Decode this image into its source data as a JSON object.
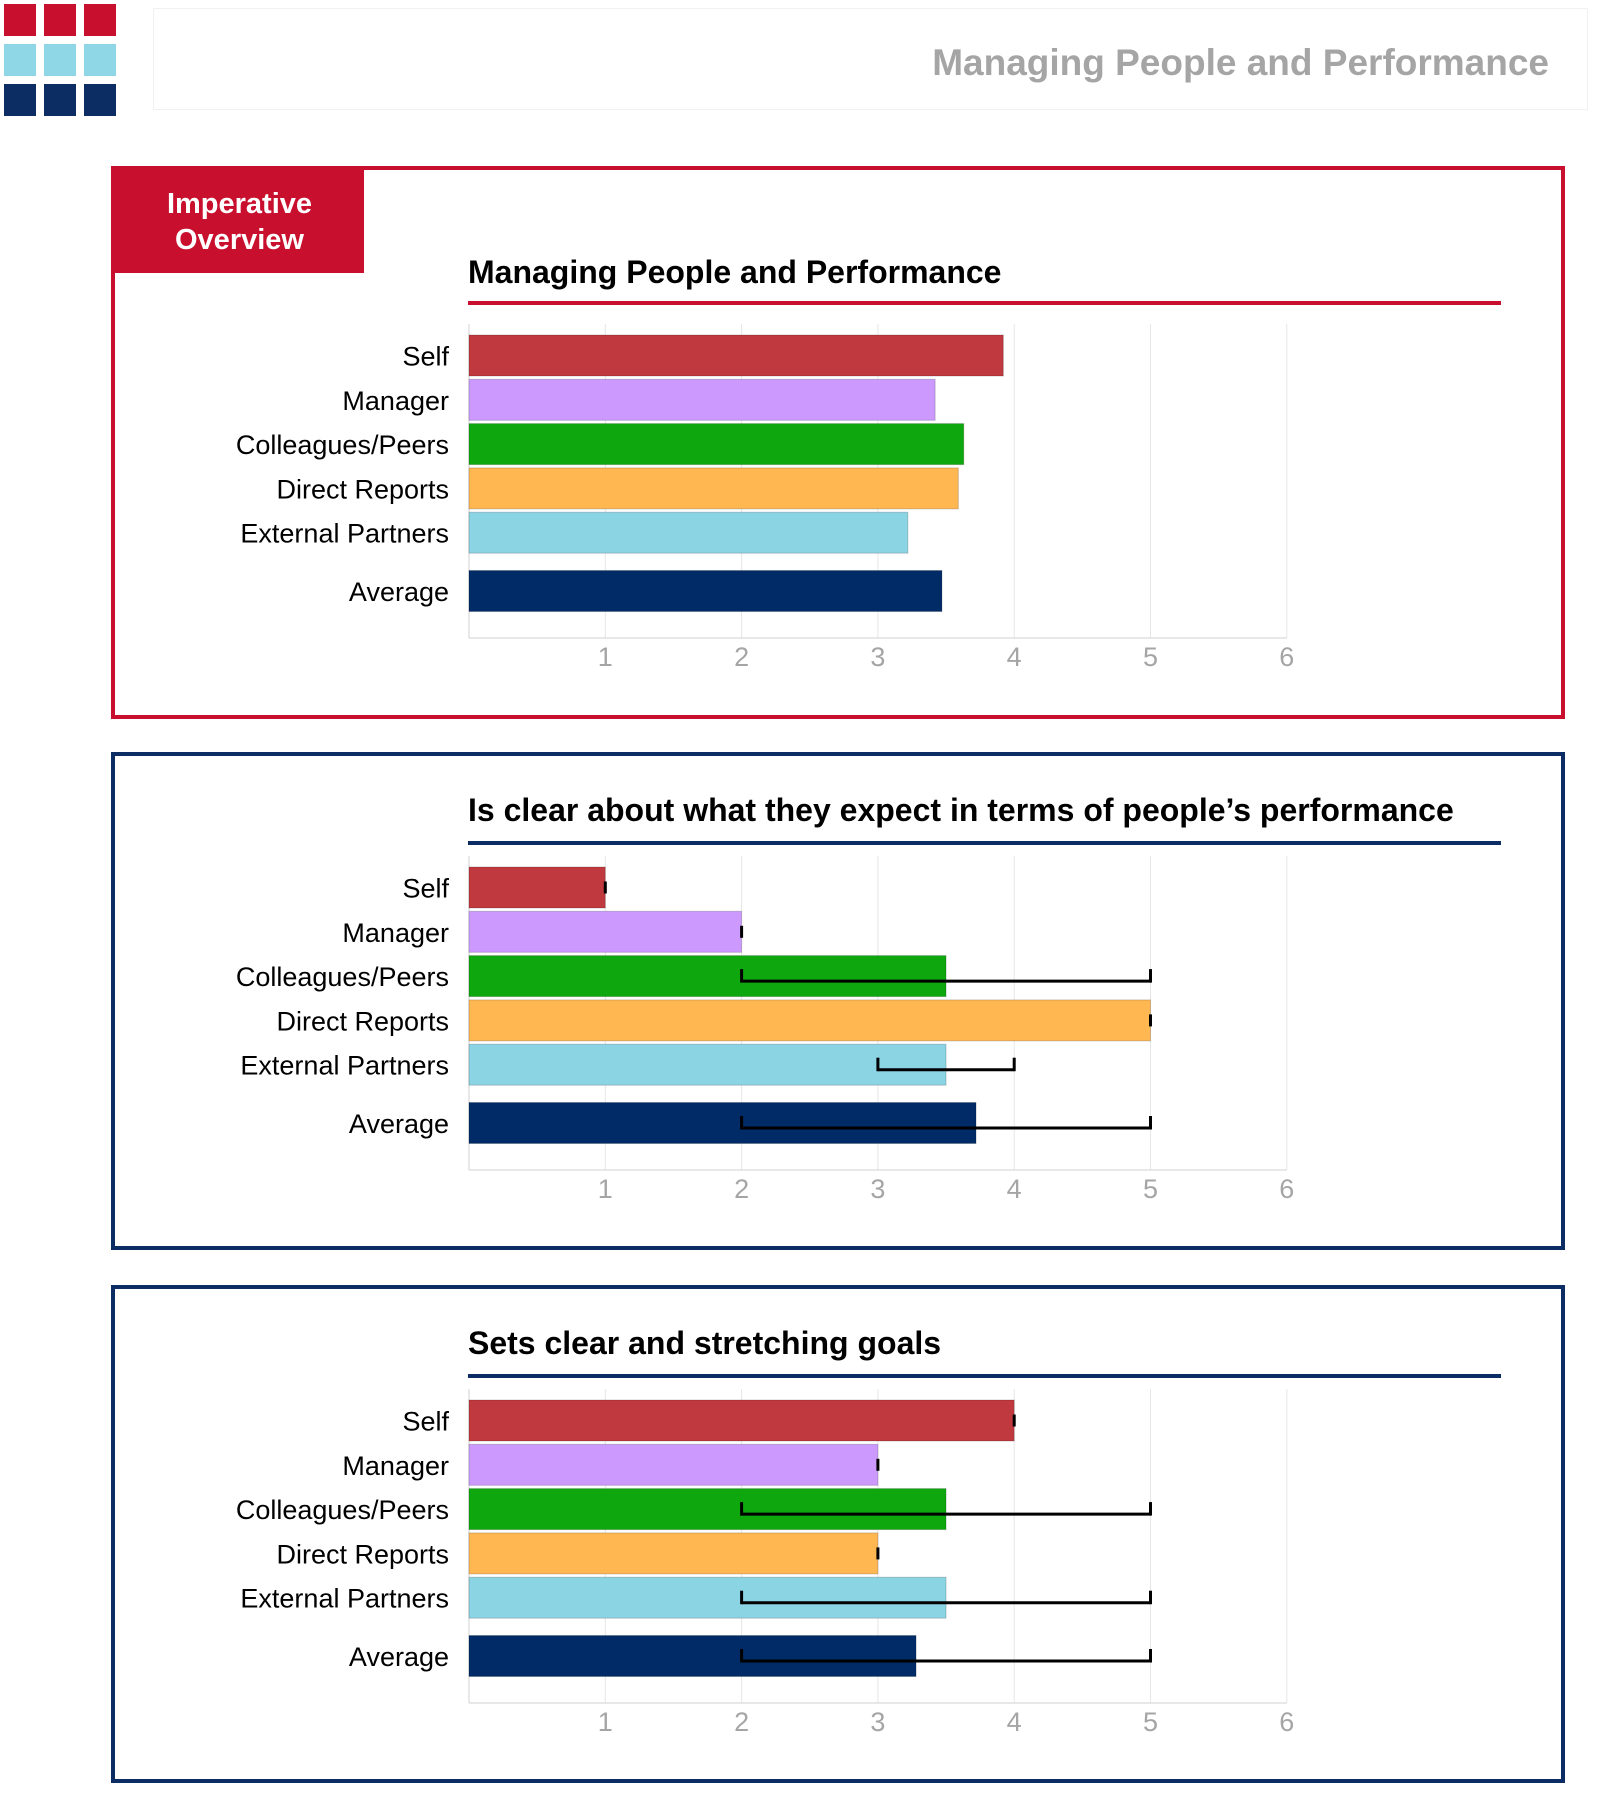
{
  "header": {
    "title": "Managing People and Performance"
  },
  "colors": {
    "brand_red": "#c8102e",
    "brand_navy": "#0b2d63",
    "logo_cyan": "#8fd6e6",
    "self": "#c0393f",
    "manager": "#cc99ff",
    "colleagues": "#0ea80e",
    "direct_reports": "#ffb752",
    "external_partners": "#8bd4e3",
    "average": "#002b66"
  },
  "overview_tab": {
    "line1": "Imperative",
    "line2": "Overview"
  },
  "chart_data": [
    {
      "type": "bar",
      "orientation": "horizontal",
      "title": "Managing People and Performance",
      "categories": [
        "Self",
        "Manager",
        "Colleagues/Peers",
        "Direct Reports",
        "External Partners",
        "Average"
      ],
      "values": [
        3.92,
        3.42,
        3.63,
        3.59,
        3.22,
        3.47
      ],
      "xlim": [
        0,
        6
      ],
      "xticks": [
        "1",
        "2",
        "3",
        "4",
        "5",
        "6"
      ],
      "ranges": null,
      "grid": true
    },
    {
      "type": "bar",
      "orientation": "horizontal",
      "title": "Is clear about what they expect in terms of people’s performance",
      "categories": [
        "Self",
        "Manager",
        "Colleagues/Peers",
        "Direct Reports",
        "External Partners",
        "Average"
      ],
      "values": [
        1.0,
        2.0,
        3.5,
        5.0,
        3.5,
        3.72
      ],
      "xlim": [
        0,
        6
      ],
      "xticks": [
        "1",
        "2",
        "3",
        "4",
        "5",
        "6"
      ],
      "ranges": [
        [
          1,
          1
        ],
        [
          2,
          2
        ],
        [
          2,
          5
        ],
        [
          5,
          5
        ],
        [
          3,
          4
        ],
        [
          2,
          5
        ]
      ],
      "grid": true
    },
    {
      "type": "bar",
      "orientation": "horizontal",
      "title": "Sets clear and stretching goals",
      "categories": [
        "Self",
        "Manager",
        "Colleagues/Peers",
        "Direct Reports",
        "External Partners",
        "Average"
      ],
      "values": [
        4.0,
        3.0,
        3.5,
        3.0,
        3.5,
        3.28
      ],
      "xlim": [
        0,
        6
      ],
      "xticks": [
        "1",
        "2",
        "3",
        "4",
        "5",
        "6"
      ],
      "ranges": [
        [
          4,
          4
        ],
        [
          3,
          3
        ],
        [
          2,
          5
        ],
        [
          3,
          3
        ],
        [
          2,
          5
        ],
        [
          2,
          5
        ]
      ],
      "grid": true
    }
  ]
}
